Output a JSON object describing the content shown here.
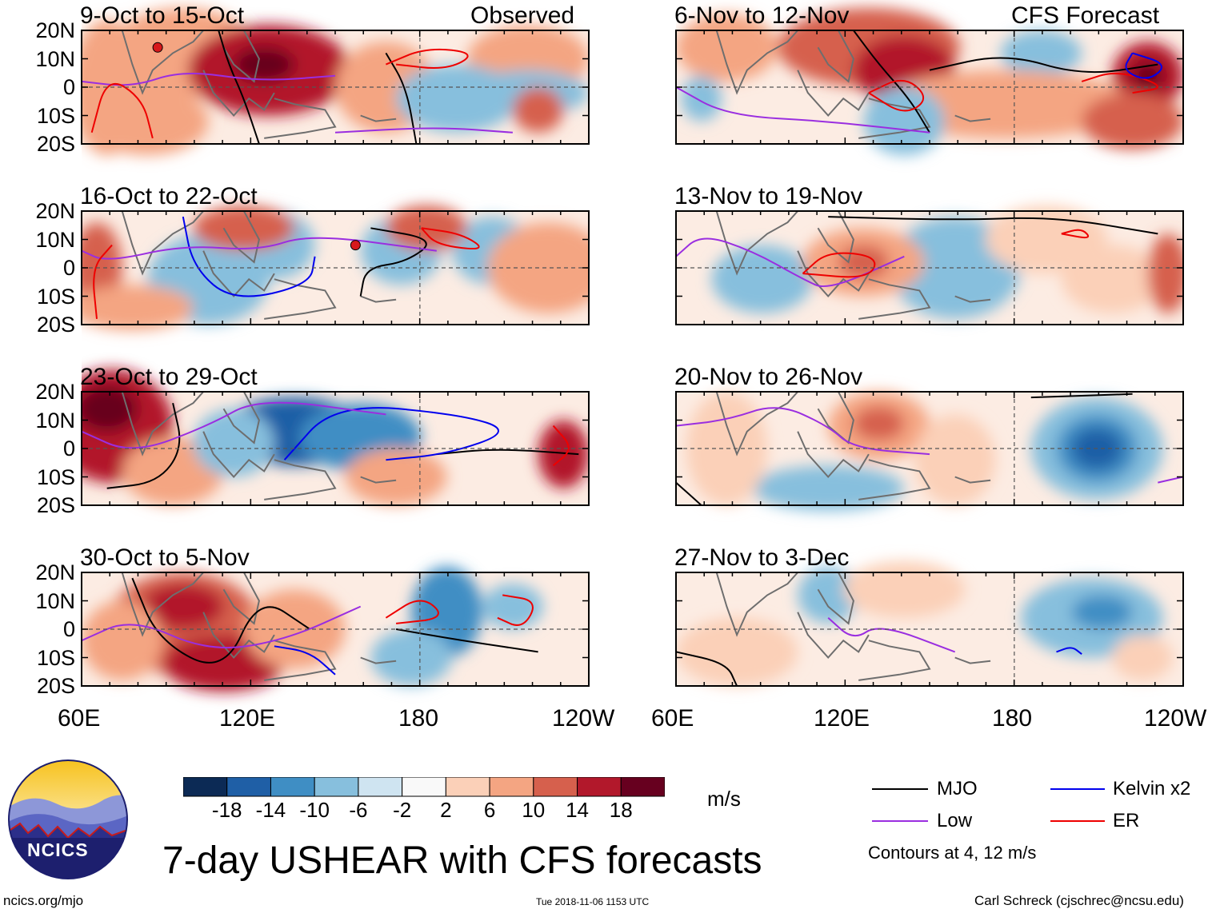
{
  "title": "7-day USHEAR with CFS forecasts",
  "observed_label": "Observed",
  "forecast_label": "CFS Forecast",
  "panels_observed": [
    {
      "dates": "9-Oct to 15-Oct"
    },
    {
      "dates": "16-Oct to 22-Oct"
    },
    {
      "dates": "23-Oct to 29-Oct"
    },
    {
      "dates": "30-Oct to 5-Nov"
    }
  ],
  "panels_forecast": [
    {
      "dates": "6-Nov to 12-Nov"
    },
    {
      "dates": "13-Nov to 19-Nov"
    },
    {
      "dates": "20-Nov to 26-Nov"
    },
    {
      "dates": "27-Nov to 3-Dec"
    }
  ],
  "lat_labels": [
    "20N",
    "10N",
    "0",
    "10S",
    "20S"
  ],
  "lon_labels": [
    "60E",
    "120E",
    "180",
    "120W"
  ],
  "colorbar": {
    "ticks": [
      "-18",
      "-14",
      "-10",
      "-6",
      "-2",
      "2",
      "6",
      "10",
      "14",
      "18"
    ],
    "units": "m/s",
    "colors": [
      "#0c2a55",
      "#1f5fa6",
      "#3f8ec4",
      "#87bfdd",
      "#cfe4f1",
      "#f9f9f9",
      "#fbd0b8",
      "#f4a582",
      "#d6604d",
      "#b2182b",
      "#67001f"
    ]
  },
  "legend": {
    "mjo": "MJO",
    "low": "Low",
    "kelvin": "Kelvin x2",
    "er": "ER",
    "note": "Contours at 4, 12 m/s",
    "colors": {
      "mjo": "#000000",
      "low": "#9a2ee0",
      "kelvin": "#0000ee",
      "er": "#ee0000"
    }
  },
  "logo_text": "NCICS",
  "footer": {
    "url": "ncics.org/mjo",
    "timestamp": "Tue 2018-11-06 1153 UTC",
    "author": "Carl Schreck (cjschrec@ncsu.edu)"
  }
}
